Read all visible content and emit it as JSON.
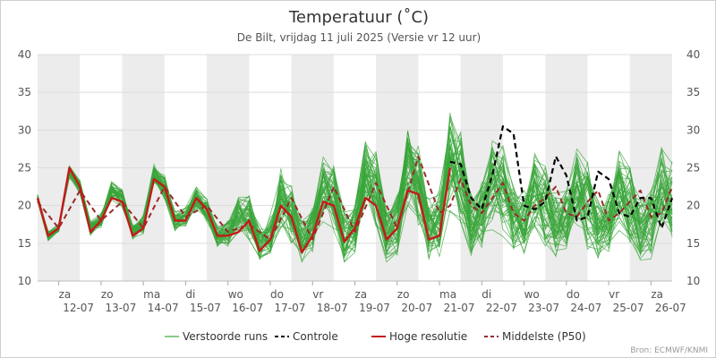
{
  "chart_data": {
    "type": "line",
    "title": "Temperatuur (˚C)",
    "subtitle": "De Bilt, vrijdag 11 juli 2025 (Versie vr 12 uur)",
    "source": "Bron: ECMWF/KNMI",
    "ylim": [
      10,
      40
    ],
    "yticks": [
      10,
      15,
      20,
      25,
      30,
      35,
      40
    ],
    "x_start_day": 11.5,
    "x_end_day": 26.5,
    "x_ticks": [
      {
        "day": 12,
        "weekday": "za",
        "date": "12-07"
      },
      {
        "day": 13,
        "weekday": "zo",
        "date": "13-07"
      },
      {
        "day": 14,
        "weekday": "ma",
        "date": "14-07"
      },
      {
        "day": 15,
        "weekday": "di",
        "date": "15-07"
      },
      {
        "day": 16,
        "weekday": "wo",
        "date": "16-07"
      },
      {
        "day": 17,
        "weekday": "do",
        "date": "17-07"
      },
      {
        "day": 18,
        "weekday": "vr",
        "date": "18-07"
      },
      {
        "day": 19,
        "weekday": "za",
        "date": "19-07"
      },
      {
        "day": 20,
        "weekday": "zo",
        "date": "20-07"
      },
      {
        "day": 21,
        "weekday": "ma",
        "date": "21-07"
      },
      {
        "day": 22,
        "weekday": "di",
        "date": "22-07"
      },
      {
        "day": 23,
        "weekday": "wo",
        "date": "23-07"
      },
      {
        "day": 24,
        "weekday": "do",
        "date": "24-07"
      },
      {
        "day": 25,
        "weekday": "vr",
        "date": "25-07"
      },
      {
        "day": 26,
        "weekday": "za",
        "date": "26-07"
      }
    ],
    "shaded_days": [
      12,
      14,
      16,
      18,
      20,
      22,
      24,
      26
    ],
    "colors": {
      "ensemble": "#3aa63a",
      "control": "#000000",
      "hires": "#c41a1a",
      "median": "#9b2a2a",
      "shade": "#ececec",
      "grid": "#dddddd"
    },
    "legend": [
      {
        "key": "ensemble",
        "label": "Verstoorde runs",
        "style": "solid"
      },
      {
        "key": "control",
        "label": "Controle",
        "style": "dashed"
      },
      {
        "key": "hires",
        "label": "Hoge resolutie",
        "style": "solid"
      },
      {
        "key": "median",
        "label": "Middelste (P50)",
        "style": "dashed"
      }
    ],
    "series": [
      {
        "key": "hires",
        "x": [
          11.5,
          11.75,
          12.0,
          12.25,
          12.5,
          12.75,
          13.0,
          13.25,
          13.5,
          13.75,
          14.0,
          14.25,
          14.5,
          14.75,
          15.0,
          15.25,
          15.5,
          15.75,
          16.0,
          16.25,
          16.5,
          16.75,
          17.0,
          17.25,
          17.5,
          17.75,
          18.0,
          18.25,
          18.5,
          18.75,
          19.0,
          19.25,
          19.5,
          19.75,
          20.0,
          20.25,
          20.5,
          20.75,
          21.0,
          21.25
        ],
        "y": [
          21,
          16,
          17,
          25,
          22.5,
          16.5,
          18,
          21,
          20.5,
          16,
          17,
          23.5,
          22.5,
          18,
          18,
          21,
          19.5,
          16,
          16,
          16.5,
          18,
          14,
          15.5,
          20,
          18.5,
          13.8,
          16,
          20.5,
          20,
          15.2,
          17,
          21,
          20,
          15.5,
          17,
          22,
          21.5,
          15.5,
          16,
          25
        ]
      },
      {
        "key": "control",
        "x": [
          21.25,
          21.5,
          21.75,
          22.0,
          22.25,
          22.5,
          22.75,
          23.0,
          23.25,
          23.5,
          23.75,
          24.0,
          24.25,
          24.5,
          24.75,
          25.0,
          25.25,
          25.5,
          25.75,
          26.0,
          26.25,
          26.5
        ],
        "y": [
          25.8,
          25.5,
          21,
          19.5,
          24,
          30.5,
          29.5,
          20,
          19.5,
          20.5,
          26.5,
          24,
          18,
          18.5,
          24.5,
          23.5,
          19,
          18.5,
          21,
          21,
          17,
          21
        ]
      },
      {
        "key": "median",
        "x": [
          11.5,
          12.0,
          12.5,
          13.0,
          13.5,
          14.0,
          14.5,
          15.0,
          15.5,
          16.0,
          16.5,
          17.0,
          17.5,
          18.0,
          18.5,
          19.0,
          19.5,
          20.0,
          20.5,
          21.0,
          21.25,
          21.5,
          21.75,
          22.0,
          22.25,
          22.5,
          22.75,
          23.0,
          23.25,
          23.5,
          23.75,
          24.0,
          24.25,
          24.5,
          24.75,
          25.0,
          25.25,
          25.5,
          25.75,
          26.0,
          26.25,
          26.5
        ],
        "y": [
          20.5,
          17,
          22,
          18,
          20.5,
          17,
          22.5,
          18.5,
          20,
          16.5,
          17.5,
          15.5,
          21,
          15.5,
          22.5,
          16.5,
          23,
          17,
          26.5,
          19,
          20,
          23.5,
          20,
          19,
          21,
          23,
          19,
          18,
          20,
          21,
          22.5,
          19,
          18.5,
          20.5,
          22,
          18,
          19,
          20.5,
          22,
          18.5,
          19,
          22.5
        ]
      }
    ],
    "ensemble": {
      "member_count": 50,
      "x": [
        11.5,
        11.75,
        12.0,
        12.25,
        12.5,
        12.75,
        13.0,
        13.25,
        13.5,
        13.75,
        14.0,
        14.25,
        14.5,
        14.75,
        15.0,
        15.25,
        15.5,
        15.75,
        16.0,
        16.25,
        16.5,
        16.75,
        17.0,
        17.25,
        17.5,
        17.75,
        18.0,
        18.25,
        18.5,
        18.75,
        19.0,
        19.25,
        19.5,
        19.75,
        20.0,
        20.25,
        20.5,
        20.75,
        21.0,
        21.25,
        21.5,
        21.75,
        22.0,
        22.25,
        22.5,
        22.75,
        23.0,
        23.25,
        23.5,
        23.75,
        24.0,
        24.25,
        24.5,
        24.75,
        25.0,
        25.25,
        25.5,
        25.75,
        26.0,
        26.25,
        26.5
      ],
      "mean": [
        21,
        16,
        17,
        24.5,
        22.5,
        17,
        18,
        22,
        21,
        16.5,
        17.5,
        24,
        22.5,
        18,
        18.5,
        21,
        19.5,
        16,
        16.5,
        19,
        18.5,
        15,
        16,
        21,
        19,
        15.5,
        17,
        22,
        21,
        16,
        17.5,
        24,
        22,
        16.5,
        17.5,
        25,
        23,
        17,
        18,
        26,
        24,
        18,
        19,
        23,
        22,
        18,
        18,
        22,
        20,
        17.5,
        18.5,
        22,
        20,
        17,
        18,
        22,
        20,
        17,
        17.5,
        22,
        21
      ],
      "spread": [
        0.4,
        0.5,
        0.5,
        0.6,
        0.7,
        0.7,
        0.8,
        1.0,
        1.0,
        0.8,
        1.0,
        1.2,
        1.2,
        1.0,
        1.0,
        1.2,
        1.3,
        1.2,
        1.4,
        2.0,
        2.5,
        2.0,
        2.2,
        3.0,
        3.2,
        2.5,
        2.5,
        3.5,
        3.5,
        2.8,
        2.8,
        4.0,
        4.0,
        3.0,
        3.2,
        4.5,
        4.5,
        3.2,
        3.5,
        5.0,
        5.0,
        3.5,
        3.5,
        4.5,
        4.5,
        3.5,
        3.5,
        4.5,
        4.5,
        3.5,
        3.5,
        4.5,
        4.5,
        3.5,
        3.5,
        4.5,
        4.5,
        3.5,
        3.5,
        4.5,
        4.5
      ]
    }
  }
}
